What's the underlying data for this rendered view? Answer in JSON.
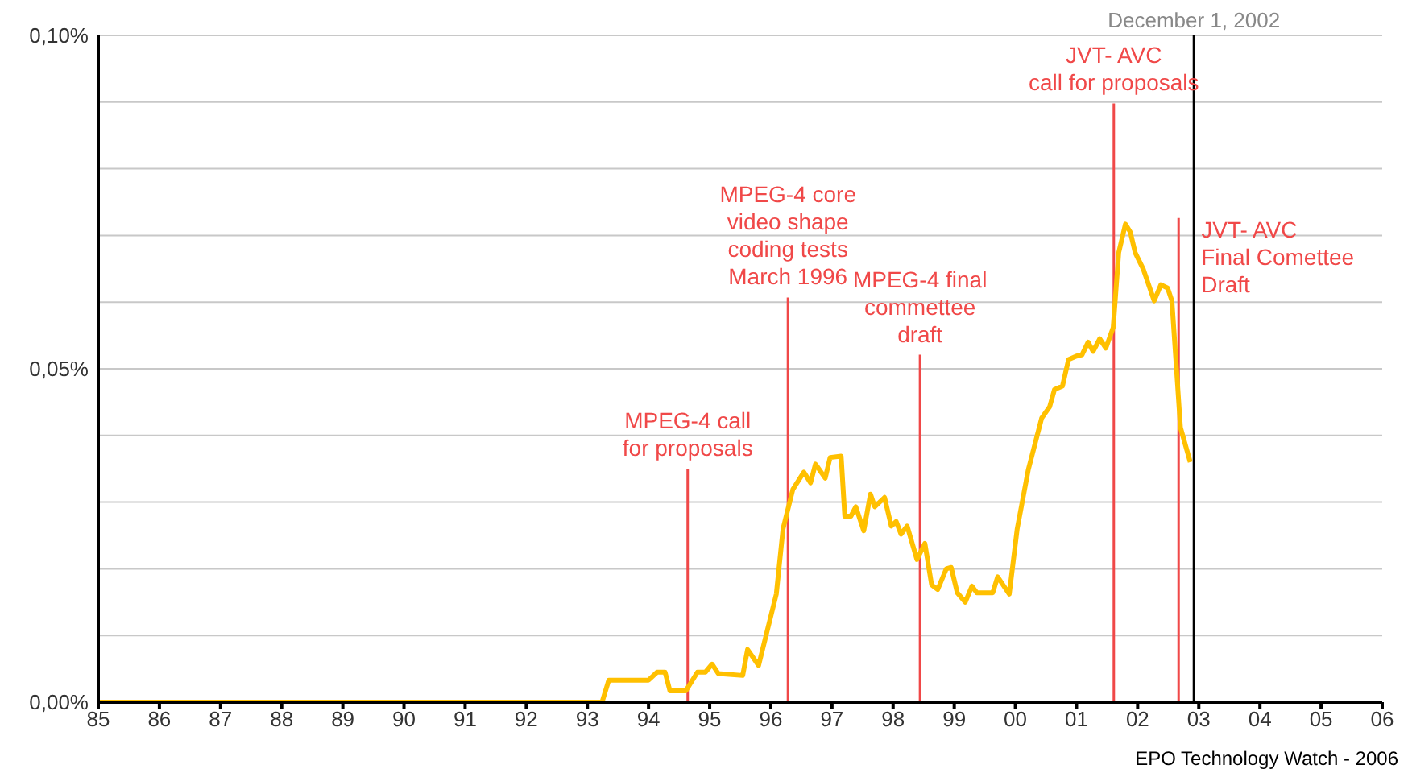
{
  "chart_data": {
    "type": "line",
    "x": [
      1985,
      1992.9,
      1993.24,
      1993.35,
      1994.0,
      1994.14,
      1994.27,
      1994.35,
      1994.61,
      1994.8,
      1994.93,
      1995.04,
      1995.14,
      1995.54,
      1995.62,
      1995.8,
      1996.09,
      1996.2,
      1996.36,
      1996.54,
      1996.65,
      1996.73,
      1996.89,
      1996.97,
      1997.15,
      1997.21,
      1997.31,
      1997.39,
      1997.52,
      1997.63,
      1997.7,
      1997.86,
      1997.97,
      1998.05,
      1998.13,
      1998.23,
      1998.39,
      1998.52,
      1998.63,
      1998.73,
      1998.87,
      1998.95,
      1999.05,
      1999.18,
      1999.29,
      1999.37,
      1999.63,
      1999.71,
      1999.9,
      2000.03,
      2000.21,
      2000.43,
      2000.56,
      2000.64,
      2000.77,
      2000.87,
      2001.0,
      2001.09,
      2001.19,
      2001.27,
      2001.38,
      2001.48,
      2001.6,
      2001.69,
      2001.8,
      2001.88,
      2001.96,
      2002.09,
      2002.27,
      2002.38,
      2002.49,
      2002.56,
      2002.7,
      2002.86
    ],
    "series": [
      {
        "color": "#ffc000",
        "values": [
          0,
          0,
          0,
          0.0033,
          0.0033,
          0.0045,
          0.0045,
          0.0017,
          0.0017,
          0.0045,
          0.0045,
          0.0057,
          0.0043,
          0.004,
          0.0079,
          0.0055,
          0.0162,
          0.026,
          0.0319,
          0.0345,
          0.0329,
          0.0357,
          0.0336,
          0.0367,
          0.0369,
          0.0279,
          0.0279,
          0.0293,
          0.0257,
          0.0312,
          0.0293,
          0.0307,
          0.0264,
          0.0271,
          0.0252,
          0.0264,
          0.0214,
          0.0238,
          0.0176,
          0.0169,
          0.02,
          0.0202,
          0.0164,
          0.015,
          0.0174,
          0.0164,
          0.0164,
          0.0188,
          0.0162,
          0.026,
          0.0348,
          0.0426,
          0.0443,
          0.0469,
          0.0474,
          0.0514,
          0.0519,
          0.0521,
          0.054,
          0.0526,
          0.0545,
          0.0531,
          0.0562,
          0.0674,
          0.0717,
          0.0705,
          0.0674,
          0.065,
          0.0602,
          0.0626,
          0.0621,
          0.0602,
          0.0412,
          0.036
        ]
      }
    ],
    "xlim": [
      1985,
      2006
    ],
    "xticks": [
      {
        "value": 1985,
        "label": "85"
      },
      {
        "value": 1986,
        "label": "86"
      },
      {
        "value": 1987,
        "label": "87"
      },
      {
        "value": 1988,
        "label": "88"
      },
      {
        "value": 1989,
        "label": "89"
      },
      {
        "value": 1990,
        "label": "90"
      },
      {
        "value": 1991,
        "label": "91"
      },
      {
        "value": 1992,
        "label": "92"
      },
      {
        "value": 1993,
        "label": "93"
      },
      {
        "value": 1994,
        "label": "94"
      },
      {
        "value": 1995,
        "label": "95"
      },
      {
        "value": 1996,
        "label": "96"
      },
      {
        "value": 1997,
        "label": "97"
      },
      {
        "value": 1998,
        "label": "98"
      },
      {
        "value": 1999,
        "label": "99"
      },
      {
        "value": 2000,
        "label": "00"
      },
      {
        "value": 2001,
        "label": "01"
      },
      {
        "value": 2002,
        "label": "02"
      },
      {
        "value": 2003,
        "label": "03"
      },
      {
        "value": 2004,
        "label": "04"
      },
      {
        "value": 2005,
        "label": "05"
      },
      {
        "value": 2006,
        "label": "06"
      }
    ],
    "ylim": [
      0,
      0.1
    ],
    "yticks": [
      {
        "value": 0,
        "label": "0,00%"
      },
      {
        "value": 0.01,
        "label": null
      },
      {
        "value": 0.02,
        "label": null
      },
      {
        "value": 0.03,
        "label": null
      },
      {
        "value": 0.04,
        "label": null
      },
      {
        "value": 0.05,
        "label": "0,05%"
      },
      {
        "value": 0.06,
        "label": null
      },
      {
        "value": 0.07,
        "label": null
      },
      {
        "value": 0.08,
        "label": null
      },
      {
        "value": 0.09,
        "label": null
      },
      {
        "value": 0.1,
        "label": "0,10%"
      }
    ],
    "grid": "y",
    "marker": "none",
    "line_style": "solid",
    "ref_lines": [
      {
        "axis": "x",
        "value": 1994.64,
        "label": "MPEG-4 call\nfor proposals",
        "color": "#f04848"
      },
      {
        "axis": "x",
        "value": 1996.28,
        "label": "MPEG-4 core\nvideo shape\ncoding tests\nMarch 1996",
        "color": "#f04848"
      },
      {
        "axis": "x",
        "value": 1998.44,
        "label": "MPEG-4 final\ncommettee\ndraft",
        "color": "#f04848"
      },
      {
        "axis": "x",
        "value": 2001.61,
        "label": "JVT- AVC\ncall for proposals",
        "color": "#f04848"
      },
      {
        "axis": "x",
        "value": 2002.67,
        "label": "JVT- AVC\nFinal Comettee\nDraft",
        "color": "#f04848"
      },
      {
        "axis": "x",
        "value": 2002.92,
        "label": "December 1, 2002",
        "color": "#000000"
      }
    ],
    "annotations": [
      "EPO Technology Watch - 2006"
    ]
  }
}
